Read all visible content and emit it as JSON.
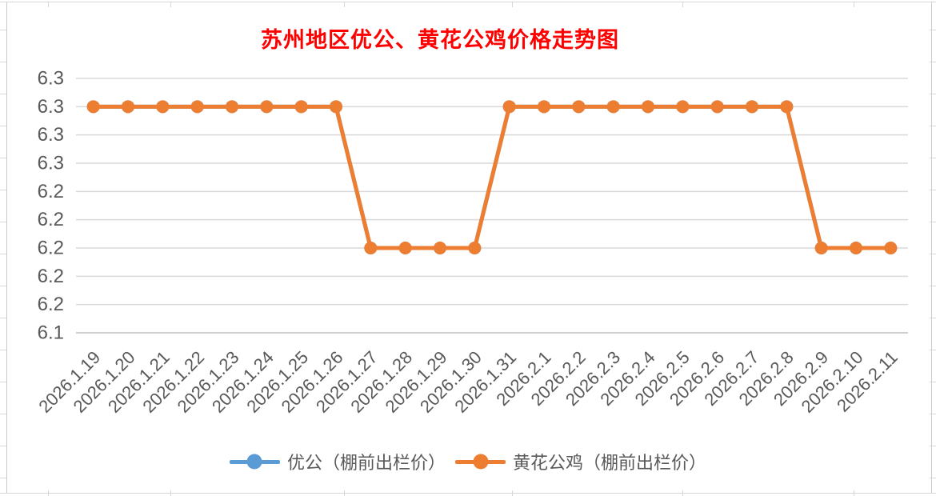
{
  "chart_data": {
    "type": "line",
    "title": "苏州地区优公、黄花公鸡价格走势图",
    "title_color": "#FF0000",
    "categories": [
      "2026.1.19",
      "2026.1.20",
      "2026.1.21",
      "2026.1.22",
      "2026.1.23",
      "2026.1.24",
      "2026.1.25",
      "2026.1.26",
      "2026.1.27",
      "2026.1.28",
      "2026.1.29",
      "2026.1.30",
      "2026.1.31",
      "2026.2.1",
      "2026.2.2",
      "2026.2.3",
      "2026.2.4",
      "2026.2.5",
      "2026.2.6",
      "2026.2.7",
      "2026.2.8",
      "2026.2.9",
      "2026.2.10",
      "2026.2.11"
    ],
    "series": [
      {
        "name": "优公（棚前出栏价）",
        "color": "#5B9BD5",
        "marker": "circle",
        "values": [
          6.3,
          6.3,
          6.3,
          6.3,
          6.3,
          6.3,
          6.3,
          6.3,
          6.2,
          6.2,
          6.2,
          6.2,
          6.3,
          6.3,
          6.3,
          6.3,
          6.3,
          6.3,
          6.3,
          6.3,
          6.3,
          6.2,
          6.2,
          6.2
        ],
        "note": "completely overlapped by the orange series in the image"
      },
      {
        "name": "黄花公鸡（棚前出栏价）",
        "color": "#ED7D31",
        "marker": "circle",
        "values": [
          6.3,
          6.3,
          6.3,
          6.3,
          6.3,
          6.3,
          6.3,
          6.3,
          6.2,
          6.2,
          6.2,
          6.2,
          6.3,
          6.3,
          6.3,
          6.3,
          6.3,
          6.3,
          6.3,
          6.3,
          6.3,
          6.2,
          6.2,
          6.2
        ]
      }
    ],
    "y_axis": {
      "min": 6.14,
      "max": 6.32,
      "step": 0.02,
      "tick_labels_top_to_bottom": [
        "6.3",
        "6.3",
        "6.3",
        "6.3",
        "6.2",
        "6.2",
        "6.2",
        "6.2",
        "6.2",
        "6.1"
      ]
    },
    "x_axis": {
      "label_rotation_deg": 45
    },
    "legend_position": "bottom",
    "grid": true,
    "colors": {
      "axis_text": "#595959",
      "gridline": "#D9D9D9",
      "axis_line": "#BFBFBF",
      "background": "#FFFFFF"
    }
  }
}
